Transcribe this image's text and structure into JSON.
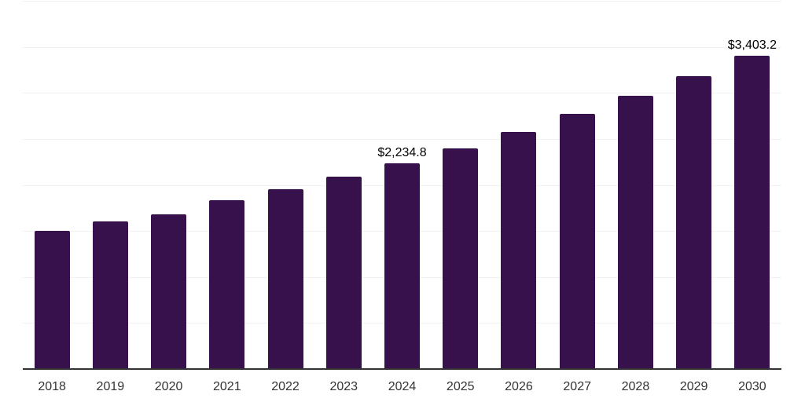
{
  "chart_data": {
    "type": "bar",
    "title": "",
    "xlabel": "",
    "ylabel": "",
    "categories": [
      "2018",
      "2019",
      "2020",
      "2021",
      "2022",
      "2023",
      "2024",
      "2025",
      "2026",
      "2027",
      "2028",
      "2029",
      "2030"
    ],
    "values": [
      1505,
      1600,
      1680,
      1830,
      1955,
      2090,
      2234.8,
      2395,
      2575,
      2775,
      2965,
      3185,
      3403.2
    ],
    "data_labels": [
      null,
      null,
      null,
      null,
      null,
      null,
      "$2,234.8",
      null,
      null,
      null,
      null,
      null,
      "$3,403.2"
    ],
    "ylim": [
      0,
      4000
    ],
    "gridline_interval": 500,
    "grid": "horizontal",
    "legend_position": "none",
    "y_tick_labels_visible": false,
    "colors": {
      "bar": "#36114B",
      "gridline": "#F2F2F2",
      "axis_line": "#333333",
      "x_tick_label": "#333333",
      "data_label": "#000000",
      "background": "#FFFFFF"
    }
  }
}
